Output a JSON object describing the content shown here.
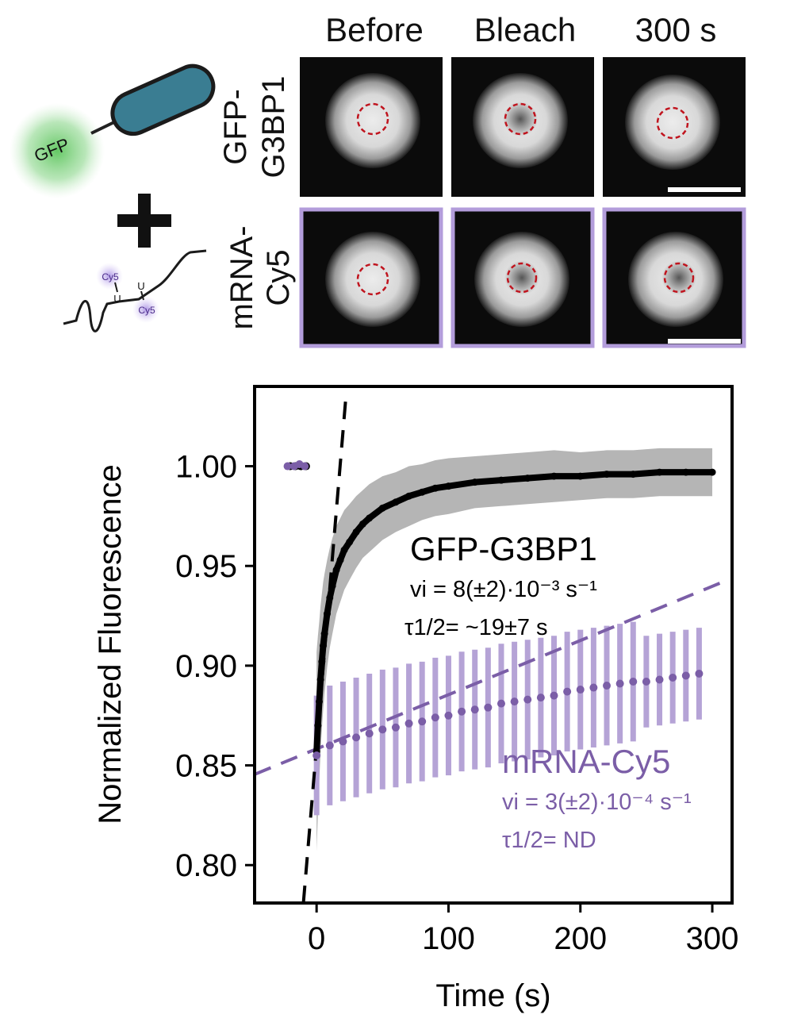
{
  "columns": [
    "Before",
    "Bleach",
    "300 s"
  ],
  "rows": [
    {
      "label1": "GFP-",
      "label2": "G3BP1"
    },
    {
      "label1": "mRNA-",
      "label2": "Cy5"
    }
  ],
  "schematic": {
    "gfp_label": "GFP",
    "cy5_label_1": "Cy5",
    "cy5_label_2": "Cy5"
  },
  "colors": {
    "gfp_series": "#000000",
    "cy5_series": "#7b5ea7",
    "cy5_frame": "#b39ddb",
    "bleach_roi": "#c0141e",
    "gfp_glow": "#5cc45c",
    "protein_body": "#3a7d92"
  },
  "chart_data": {
    "type": "scatter",
    "xlabel": "Time (s)",
    "ylabel": "Normalized Fluorescence",
    "xlim": [
      -47,
      315
    ],
    "ylim": [
      0.781,
      1.04
    ],
    "xticks": [
      "0",
      "100",
      "200",
      "300"
    ],
    "xtick_values": [
      0,
      100,
      200,
      300
    ],
    "yticks": [
      "0.80",
      "0.85",
      "0.90",
      "0.95",
      "1.00"
    ],
    "ytick_values": [
      0.8,
      0.85,
      0.9,
      0.95,
      1.0
    ],
    "grid": false,
    "series": [
      {
        "name": "GFP-G3BP1",
        "pre_bleach": {
          "x": [
            -20,
            -16,
            -12,
            -8
          ],
          "y": [
            1.0,
            1.0,
            1.0,
            1.0
          ]
        },
        "x": [
          0,
          1,
          2,
          3,
          4,
          5,
          6,
          8,
          10,
          12,
          15,
          18,
          21,
          25,
          30,
          35,
          40,
          50,
          60,
          70,
          80,
          90,
          100,
          120,
          140,
          160,
          180,
          200,
          220,
          240,
          260,
          280,
          300
        ],
        "y": [
          0.857,
          0.87,
          0.882,
          0.893,
          0.902,
          0.91,
          0.916,
          0.926,
          0.934,
          0.94,
          0.948,
          0.953,
          0.958,
          0.962,
          0.967,
          0.971,
          0.974,
          0.979,
          0.982,
          0.985,
          0.987,
          0.989,
          0.99,
          0.992,
          0.993,
          0.994,
          0.995,
          0.995,
          0.996,
          0.996,
          0.997,
          0.997,
          0.997
        ],
        "error_band": [
          0.05,
          0.045,
          0.04,
          0.037,
          0.034,
          0.032,
          0.03,
          0.027,
          0.025,
          0.024,
          0.022,
          0.021,
          0.02,
          0.019,
          0.018,
          0.017,
          0.017,
          0.016,
          0.015,
          0.015,
          0.014,
          0.014,
          0.014,
          0.013,
          0.013,
          0.013,
          0.013,
          0.012,
          0.012,
          0.012,
          0.012,
          0.012,
          0.012
        ],
        "fit_line": {
          "x": [
            -10,
            22
          ],
          "y": [
            0.781,
            1.033
          ]
        },
        "annotation": {
          "name": "GFP-G3BP1",
          "rate": "vi = 8(±2)·10⁻³ s⁻¹",
          "half_time": "τ1/2= ~19±7 s"
        }
      },
      {
        "name": "mRNA-Cy5",
        "pre_bleach": {
          "x": [
            -22,
            -17,
            -13,
            -9
          ],
          "y": [
            1.0,
            1.0,
            1.001,
            1.0
          ]
        },
        "x": [
          0,
          10,
          20,
          30,
          40,
          50,
          60,
          70,
          80,
          90,
          100,
          110,
          120,
          130,
          140,
          150,
          160,
          170,
          180,
          190,
          200,
          210,
          220,
          230,
          240,
          250,
          260,
          270,
          280,
          290
        ],
        "y": [
          0.855,
          0.86,
          0.862,
          0.864,
          0.866,
          0.868,
          0.869,
          0.871,
          0.872,
          0.874,
          0.875,
          0.877,
          0.878,
          0.879,
          0.881,
          0.882,
          0.883,
          0.884,
          0.885,
          0.887,
          0.888,
          0.889,
          0.89,
          0.891,
          0.892,
          0.892,
          0.893,
          0.894,
          0.895,
          0.896
        ],
        "error": [
          0.03,
          0.03,
          0.03,
          0.03,
          0.03,
          0.03,
          0.03,
          0.03,
          0.03,
          0.03,
          0.03,
          0.03,
          0.03,
          0.03,
          0.03,
          0.03,
          0.03,
          0.03,
          0.03,
          0.03,
          0.03,
          0.03,
          0.03,
          0.03,
          0.03,
          0.023,
          0.023,
          0.023,
          0.023,
          0.023
        ],
        "fit_line": {
          "x": [
            -47,
            310
          ],
          "y": [
            0.8455,
            0.9425
          ]
        },
        "annotation": {
          "name": "mRNA-Cy5",
          "rate": "vi = 3(±2)·10⁻⁴ s⁻¹",
          "half_time": "τ1/2= ND"
        }
      }
    ]
  }
}
